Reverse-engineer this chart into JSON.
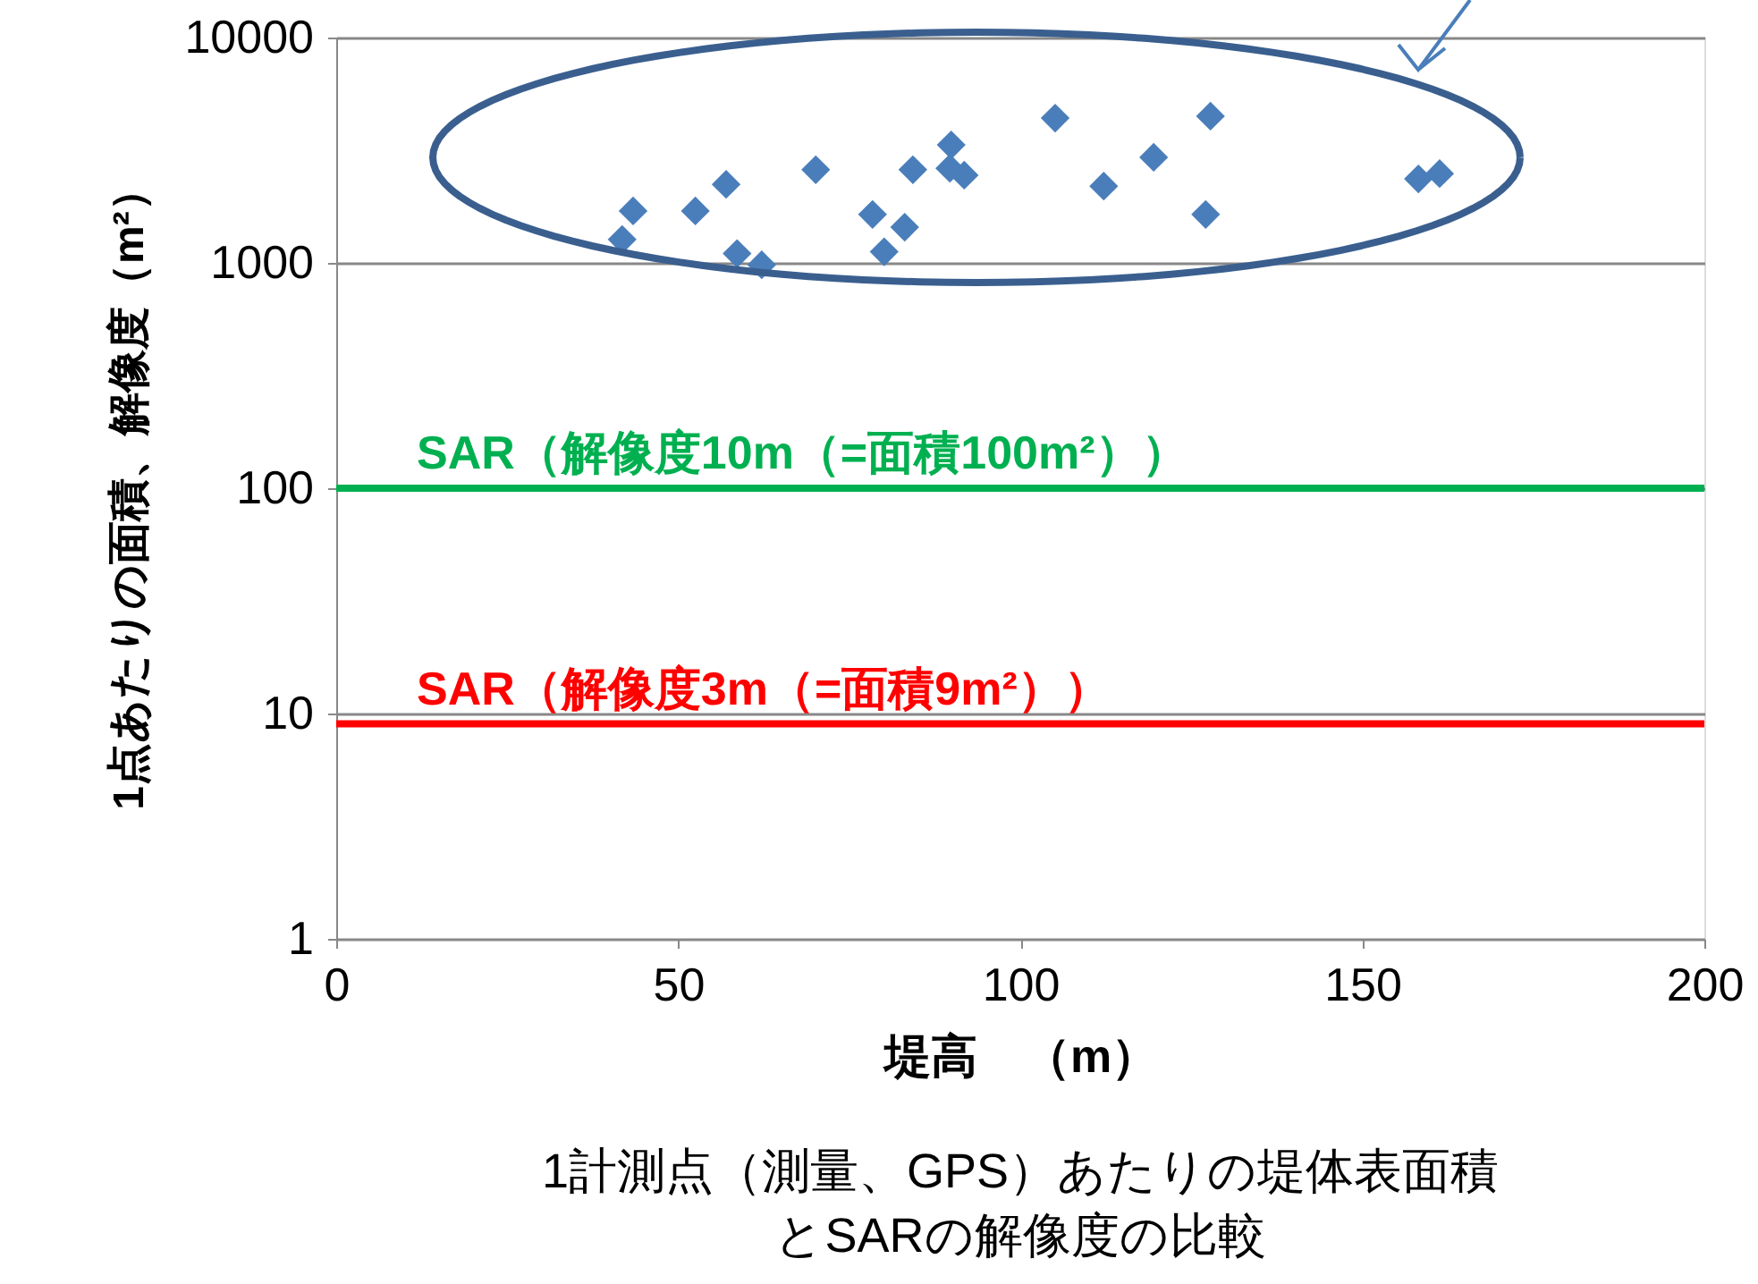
{
  "chart_data": {
    "type": "scatter",
    "xlabel": "堤高　（m）",
    "ylabel": "1点あたりの面積、解像度（m²）",
    "annotations": [
      "1計測点（測量、GPS）あたりの堤体表面積",
      "とSARの解像度の比較"
    ],
    "x": [
      41.8,
      43.4,
      52.5,
      57.0,
      58.6,
      62.2,
      70.1,
      78.4,
      80.1,
      83.1,
      84.3,
      89.9,
      89.7,
      91.8,
      105.1,
      112.2,
      119.5,
      127.1,
      127.8,
      158.2,
      161.3
    ],
    "series": [
      {
        "color": "#4a7ebb",
        "values": [
          1270,
          1700,
          1700,
          2230,
          1100,
          980,
          2590,
          1640,
          1120,
          1440,
          2590,
          3340,
          2630,
          2450,
          4390,
          2190,
          2940,
          1640,
          4480,
          2360,
          2490
        ]
      }
    ],
    "marker": "diamond",
    "log": "y",
    "xlim": [
      0,
      200
    ],
    "xticks": [
      0,
      50,
      100,
      150,
      200
    ],
    "ylim": [
      1,
      10000
    ],
    "yticks": [
      1,
      10,
      100,
      1000,
      10000
    ],
    "grid": "y",
    "ref_lines": [
      {
        "axis": "y",
        "value": 100,
        "label": "SAR（解像度10m（=面積100m²））",
        "color": "#00b050"
      },
      {
        "axis": "y",
        "value": 9,
        "label": "SAR（解像度3m（=面積9m²））",
        "color": "#ff0000"
      }
    ]
  }
}
